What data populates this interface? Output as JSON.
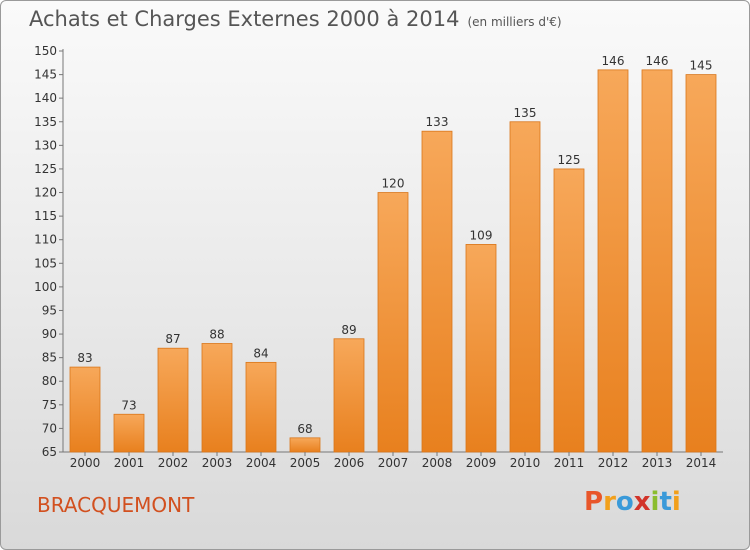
{
  "title": "Achats et Charges Externes 2000 à 2014",
  "subtitle": "(en milliers d'€)",
  "commune": "BRACQUEMONT",
  "logo": {
    "text": "Proxiti",
    "letters": [
      "P",
      "r",
      "o",
      "x",
      "i",
      "t",
      "i"
    ],
    "colors": [
      "#e8562a",
      "#f2a01b",
      "#3a9ad9",
      "#d2342a",
      "#8bbd2e",
      "#3a9ad9",
      "#f2a01b"
    ]
  },
  "colors": {
    "bar_top": "#f7a85a",
    "bar_bottom": "#e8801e",
    "bar_edge": "#d9761a",
    "commune": "#d2501f"
  },
  "chart_data": {
    "type": "bar",
    "title": "Achats et Charges Externes 2000 à 2014",
    "subtitle": "(en milliers d'€)",
    "categories": [
      "2000",
      "2001",
      "2002",
      "2003",
      "2004",
      "2005",
      "2006",
      "2007",
      "2008",
      "2009",
      "2010",
      "2011",
      "2012",
      "2013",
      "2014"
    ],
    "values": [
      83,
      73,
      87,
      88,
      84,
      68,
      89,
      120,
      133,
      109,
      135,
      125,
      146,
      146,
      145
    ],
    "ylim": [
      65,
      150
    ],
    "yticks": [
      65,
      70,
      75,
      80,
      85,
      90,
      95,
      100,
      105,
      110,
      115,
      120,
      125,
      130,
      135,
      140,
      145,
      150
    ],
    "grid": false,
    "xlabel": "",
    "ylabel": ""
  }
}
